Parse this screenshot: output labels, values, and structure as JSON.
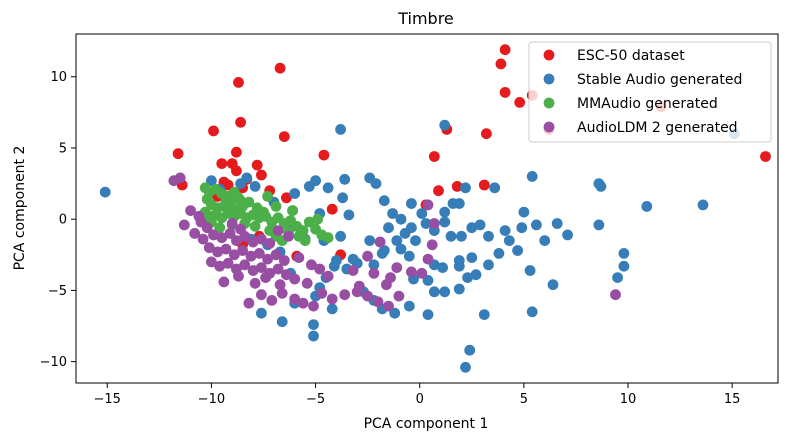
{
  "chart_data": {
    "type": "scatter",
    "title": "Timbre",
    "xlabel": "PCA component 1",
    "ylabel": "PCA component 2",
    "xlim": [
      -16.5,
      17.2
    ],
    "ylim": [
      -11.5,
      13.0
    ],
    "xticks": [
      -15,
      -10,
      -5,
      0,
      5,
      10,
      15
    ],
    "yticks": [
      -10,
      -5,
      0,
      5,
      10
    ],
    "grid": false,
    "legend": "top-right",
    "series": [
      {
        "name": "ESC-50 dataset",
        "color": "#e41a1c",
        "points": [
          [
            4.1,
            11.9
          ],
          [
            3.9,
            10.9
          ],
          [
            -6.7,
            10.6
          ],
          [
            -8.7,
            9.6
          ],
          [
            4.1,
            8.9
          ],
          [
            4.8,
            8.2
          ],
          [
            5.4,
            8.7
          ],
          [
            6.2,
            6.3
          ],
          [
            11.6,
            7.9
          ],
          [
            -8.6,
            6.8
          ],
          [
            -9.9,
            6.2
          ],
          [
            1.3,
            6.3
          ],
          [
            3.2,
            6.0
          ],
          [
            -6.5,
            5.8
          ],
          [
            -11.6,
            4.6
          ],
          [
            -8.8,
            4.7
          ],
          [
            -4.6,
            4.5
          ],
          [
            -9.5,
            3.9
          ],
          [
            -9.0,
            3.9
          ],
          [
            -7.8,
            3.8
          ],
          [
            0.7,
            4.4
          ],
          [
            16.6,
            4.4
          ],
          [
            -11.4,
            2.4
          ],
          [
            -8.8,
            3.4
          ],
          [
            -8.3,
            2.8
          ],
          [
            -7.6,
            3.1
          ],
          [
            -9.4,
            2.6
          ],
          [
            -9.2,
            2.4
          ],
          [
            1.8,
            2.3
          ],
          [
            0.9,
            2.0
          ],
          [
            3.1,
            2.4
          ],
          [
            -8.5,
            2.2
          ],
          [
            -7.2,
            2.0
          ],
          [
            -6.4,
            1.5
          ],
          [
            0.3,
            1.0
          ],
          [
            -9.7,
            1.6
          ],
          [
            -4.2,
            0.7
          ],
          [
            -7.7,
            -1.2
          ],
          [
            -8.5,
            -1.8
          ],
          [
            -5.9,
            -2.6
          ],
          [
            -3.8,
            -2.5
          ]
        ]
      },
      {
        "name": "Stable Audio generated",
        "color": "#377eb8",
        "points": [
          [
            -15.1,
            1.9
          ],
          [
            -10.0,
            2.7
          ],
          [
            -8.6,
            2.5
          ],
          [
            -7.9,
            2.3
          ],
          [
            -6.0,
            1.8
          ],
          [
            -5.0,
            2.7
          ],
          [
            -4.4,
            2.2
          ],
          [
            -3.6,
            2.8
          ],
          [
            -2.4,
            2.9
          ],
          [
            -2.1,
            2.5
          ],
          [
            -1.7,
            1.3
          ],
          [
            -3.7,
            1.5
          ],
          [
            -5.3,
            2.3
          ],
          [
            -6.1,
            0.6
          ],
          [
            -4.8,
            0.4
          ],
          [
            -3.4,
            0.3
          ],
          [
            -1.3,
            0.4
          ],
          [
            -0.9,
            0.0
          ],
          [
            -0.4,
            1.1
          ],
          [
            0.1,
            0.4
          ],
          [
            1.2,
            0.5
          ],
          [
            1.6,
            1.1
          ],
          [
            1.9,
            1.1
          ],
          [
            2.2,
            2.2
          ],
          [
            3.6,
            2.2
          ],
          [
            5.4,
            3.0
          ],
          [
            8.6,
            2.5
          ],
          [
            8.7,
            2.3
          ],
          [
            10.9,
            0.9
          ],
          [
            13.6,
            1.0
          ],
          [
            15.1,
            6.0
          ],
          [
            -3.8,
            6.3
          ],
          [
            1.2,
            6.6
          ],
          [
            -8.3,
            2.9
          ],
          [
            -9.6,
            2.1
          ],
          [
            -7.0,
            1.2
          ],
          [
            -6.2,
            -0.6
          ],
          [
            -5.5,
            -1.4
          ],
          [
            -4.6,
            -1.5
          ],
          [
            -3.8,
            -1.2
          ],
          [
            -3.2,
            -2.8
          ],
          [
            -2.4,
            -1.5
          ],
          [
            -1.8,
            -2.4
          ],
          [
            -1.5,
            -0.6
          ],
          [
            -1.1,
            -1.5
          ],
          [
            -0.7,
            -1.0
          ],
          [
            -0.4,
            -0.6
          ],
          [
            -0.2,
            -1.5
          ],
          [
            0.3,
            -0.3
          ],
          [
            0.7,
            -0.8
          ],
          [
            1.2,
            -0.2
          ],
          [
            1.5,
            -1.2
          ],
          [
            2.0,
            -1.2
          ],
          [
            2.5,
            -0.6
          ],
          [
            2.9,
            -0.4
          ],
          [
            3.3,
            -1.2
          ],
          [
            3.8,
            -2.4
          ],
          [
            4.1,
            -0.8
          ],
          [
            4.3,
            -1.5
          ],
          [
            4.9,
            -0.6
          ],
          [
            5.6,
            -0.4
          ],
          [
            6.0,
            -1.5
          ],
          [
            6.6,
            -0.3
          ],
          [
            7.1,
            -1.1
          ],
          [
            8.6,
            -0.4
          ],
          [
            9.8,
            -2.4
          ],
          [
            9.8,
            -3.3
          ],
          [
            9.5,
            -4.1
          ],
          [
            6.4,
            -4.6
          ],
          [
            5.3,
            -3.6
          ],
          [
            4.7,
            -2.2
          ],
          [
            3.3,
            -3.2
          ],
          [
            2.5,
            -2.7
          ],
          [
            1.9,
            -2.9
          ],
          [
            1.1,
            -3.4
          ],
          [
            0.7,
            -3.2
          ],
          [
            0.4,
            -4.3
          ],
          [
            0.7,
            -5.1
          ],
          [
            1.2,
            -5.1
          ],
          [
            1.9,
            -4.9
          ],
          [
            2.3,
            -4.1
          ],
          [
            2.7,
            -3.9
          ],
          [
            3.1,
            -6.7
          ],
          [
            5.4,
            -6.5
          ],
          [
            2.4,
            -9.2
          ],
          [
            2.2,
            -10.4
          ],
          [
            1.9,
            -3.3
          ],
          [
            -0.3,
            -4.2
          ],
          [
            -0.5,
            -2.6
          ],
          [
            -0.9,
            -2.1
          ],
          [
            -1.7,
            -2.2
          ],
          [
            -2.2,
            -3.2
          ],
          [
            -2.7,
            -5.1
          ],
          [
            -3.0,
            -3.1
          ],
          [
            -3.5,
            -3.5
          ],
          [
            -4.1,
            -3.3
          ],
          [
            -4.5,
            -4.1
          ],
          [
            -5.0,
            -5.4
          ],
          [
            -5.1,
            -7.4
          ],
          [
            -5.1,
            -8.2
          ],
          [
            -6.0,
            -5.9
          ],
          [
            -6.6,
            -7.2
          ],
          [
            -7.6,
            -6.6
          ],
          [
            -0.5,
            -6.1
          ],
          [
            -1.2,
            -6.6
          ],
          [
            -1.8,
            -6.3
          ],
          [
            -2.2,
            -5.7
          ],
          [
            -4.2,
            -6.3
          ],
          [
            -4.8,
            -4.8
          ],
          [
            -6.2,
            -3.8
          ],
          [
            -6.7,
            -2.3
          ],
          [
            -7.3,
            -1.8
          ],
          [
            -8.1,
            -1.4
          ],
          [
            -4.0,
            -2.9
          ],
          [
            0.4,
            -6.7
          ],
          [
            5.0,
            0.5
          ]
        ]
      },
      {
        "name": "MMAudio generated",
        "color": "#4daf4a",
        "points": [
          [
            -10.3,
            2.2
          ],
          [
            -10.1,
            1.9
          ],
          [
            -9.8,
            2.1
          ],
          [
            -9.5,
            1.8
          ],
          [
            -9.2,
            1.6
          ],
          [
            -8.9,
            1.9
          ],
          [
            -8.6,
            1.3
          ],
          [
            -10.2,
            1.4
          ],
          [
            -10.0,
            1.0
          ],
          [
            -9.7,
            0.8
          ],
          [
            -9.4,
            0.9
          ],
          [
            -9.1,
            1.1
          ],
          [
            -8.8,
            0.7
          ],
          [
            -8.5,
            0.9
          ],
          [
            -8.2,
            1.2
          ],
          [
            -7.8,
            0.8
          ],
          [
            -7.5,
            0.5
          ],
          [
            -10.3,
            0.5
          ],
          [
            -10.1,
            0.2
          ],
          [
            -9.8,
            0.3
          ],
          [
            -9.5,
            0.1
          ],
          [
            -9.2,
            0.4
          ],
          [
            -8.9,
            0.2
          ],
          [
            -8.6,
            0.4
          ],
          [
            -8.3,
            0.1
          ],
          [
            -8.0,
            0.3
          ],
          [
            -7.7,
            0.1
          ],
          [
            -7.4,
            0.2
          ],
          [
            -7.1,
            -0.2
          ],
          [
            -6.8,
            0.1
          ],
          [
            -6.5,
            -0.3
          ],
          [
            -6.2,
            -0.1
          ],
          [
            -5.9,
            -0.5
          ],
          [
            -5.6,
            -0.8
          ],
          [
            -5.3,
            -0.2
          ],
          [
            -5.0,
            -0.7
          ],
          [
            -4.7,
            -1.1
          ],
          [
            -4.4,
            -1.3
          ],
          [
            -6.9,
            -1.2
          ],
          [
            -6.6,
            -1.5
          ],
          [
            -7.2,
            -0.8
          ],
          [
            -7.9,
            -0.5
          ],
          [
            -8.4,
            -0.3
          ],
          [
            -9.0,
            -0.4
          ],
          [
            -9.6,
            -0.6
          ],
          [
            -10.0,
            -0.2
          ],
          [
            -7.3,
            1.6
          ],
          [
            -6.9,
            0.9
          ],
          [
            -8.7,
            1.5
          ],
          [
            -9.3,
            1.3
          ],
          [
            -6.3,
            -0.9
          ],
          [
            -5.5,
            -1.5
          ],
          [
            -4.9,
            0.0
          ],
          [
            -6.1,
            0.6
          ],
          [
            -5.8,
            -1.2
          ]
        ]
      },
      {
        "name": "AudioLDM 2 generated",
        "color": "#984ea3",
        "points": [
          [
            -11.8,
            2.7
          ],
          [
            -11.5,
            2.9
          ],
          [
            -11.0,
            0.6
          ],
          [
            -10.5,
            -0.2
          ],
          [
            -10.2,
            -0.6
          ],
          [
            -10.8,
            -1.0
          ],
          [
            -10.4,
            -1.4
          ],
          [
            -9.9,
            -1.1
          ],
          [
            -9.5,
            -1.3
          ],
          [
            -9.1,
            -1.0
          ],
          [
            -8.8,
            -1.5
          ],
          [
            -8.4,
            -1.2
          ],
          [
            -8.0,
            -1.6
          ],
          [
            -7.6,
            -1.4
          ],
          [
            -7.2,
            -1.7
          ],
          [
            -10.1,
            -2.0
          ],
          [
            -9.7,
            -2.3
          ],
          [
            -9.3,
            -2.1
          ],
          [
            -8.9,
            -2.5
          ],
          [
            -8.5,
            -2.2
          ],
          [
            -8.1,
            -2.6
          ],
          [
            -7.7,
            -2.4
          ],
          [
            -7.3,
            -2.8
          ],
          [
            -6.9,
            -2.5
          ],
          [
            -6.5,
            -2.9
          ],
          [
            -10.0,
            -3.0
          ],
          [
            -9.6,
            -3.3
          ],
          [
            -9.2,
            -3.1
          ],
          [
            -8.8,
            -3.5
          ],
          [
            -8.4,
            -3.2
          ],
          [
            -8.0,
            -3.6
          ],
          [
            -7.6,
            -3.4
          ],
          [
            -7.2,
            -3.8
          ],
          [
            -6.8,
            -3.5
          ],
          [
            -6.4,
            -3.9
          ],
          [
            -9.4,
            -4.4
          ],
          [
            -8.7,
            -4.0
          ],
          [
            -7.9,
            -4.5
          ],
          [
            -7.4,
            -4.1
          ],
          [
            -6.7,
            -4.6
          ],
          [
            -6.0,
            -4.2
          ],
          [
            -5.4,
            -4.5
          ],
          [
            -4.7,
            -5.2
          ],
          [
            -4.2,
            -5.6
          ],
          [
            -3.6,
            -5.3
          ],
          [
            -3.0,
            -5.1
          ],
          [
            -2.5,
            -5.4
          ],
          [
            -6.0,
            -5.6
          ],
          [
            -5.6,
            -5.9
          ],
          [
            -5.1,
            -6.1
          ],
          [
            -6.6,
            -5.2
          ],
          [
            -7.1,
            -5.7
          ],
          [
            -7.6,
            -5.3
          ],
          [
            -8.2,
            -5.9
          ],
          [
            -4.4,
            -4.0
          ],
          [
            -3.2,
            -3.6
          ],
          [
            -2.2,
            -3.8
          ],
          [
            -1.4,
            -4.1
          ],
          [
            -1.0,
            -5.4
          ],
          [
            -2.0,
            -5.8
          ],
          [
            -1.5,
            -6.1
          ],
          [
            -6.3,
            -1.2
          ],
          [
            -6.8,
            -0.8
          ],
          [
            -5.8,
            -2.7
          ],
          [
            -5.2,
            -3.2
          ],
          [
            -4.8,
            -3.5
          ],
          [
            -2.5,
            -2.6
          ],
          [
            -1.9,
            -1.6
          ],
          [
            -1.6,
            -4.6
          ],
          [
            -1.1,
            -3.4
          ],
          [
            -0.4,
            -3.7
          ],
          [
            0.4,
            -2.8
          ],
          [
            0.1,
            -3.8
          ],
          [
            0.6,
            -1.8
          ],
          [
            0.7,
            -0.3
          ],
          [
            0.4,
            1.0
          ],
          [
            -9.0,
            -0.3
          ],
          [
            -8.6,
            -0.7
          ],
          [
            -10.6,
            0.2
          ],
          [
            -11.3,
            -0.4
          ],
          [
            9.4,
            -5.3
          ],
          [
            -2.9,
            -4.7
          ]
        ]
      }
    ]
  }
}
